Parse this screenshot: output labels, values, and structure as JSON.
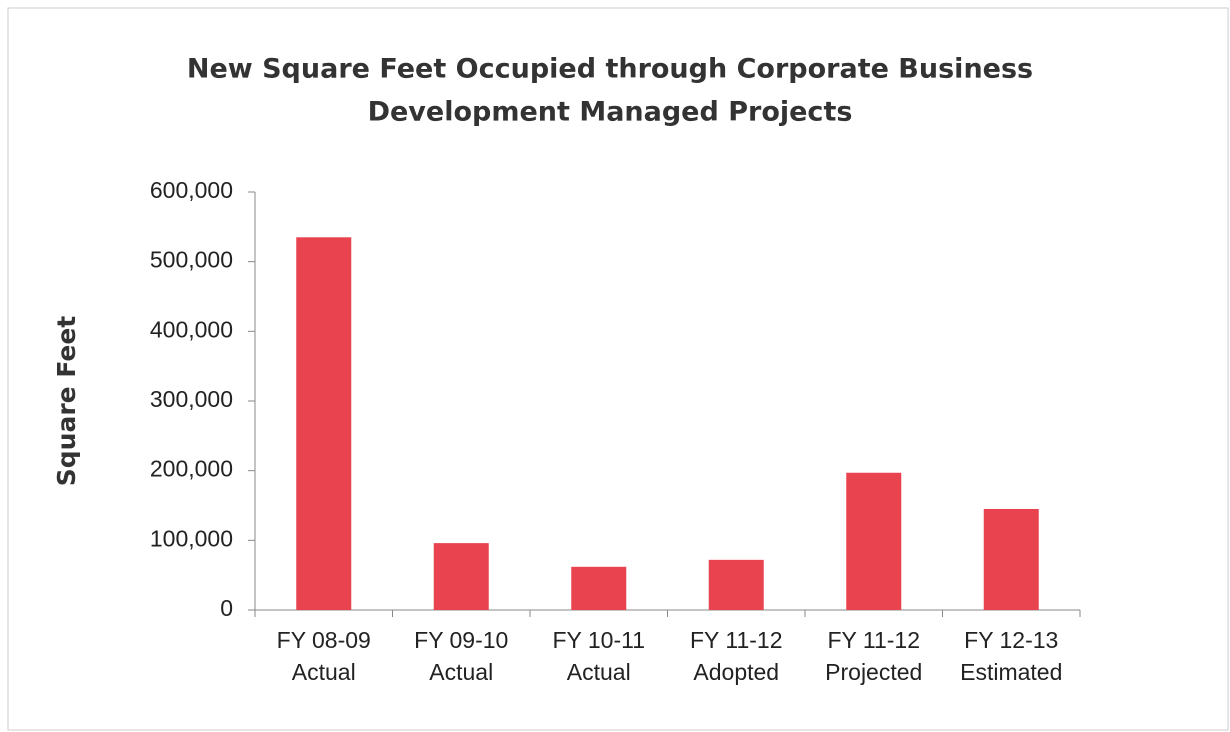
{
  "chart_data": {
    "type": "bar",
    "title": [
      "New Square Feet Occupied through Corporate Business",
      "Development Managed Projects"
    ],
    "y_label": "Square Feet",
    "categories": [
      [
        "FY 08-09",
        "Actual"
      ],
      [
        "FY 09-10",
        "Actual"
      ],
      [
        "FY 10-11",
        "Actual"
      ],
      [
        "FY 11-12",
        "Adopted"
      ],
      [
        "FY 11-12",
        "Projected"
      ],
      [
        "FY 12-13",
        "Estimated"
      ]
    ],
    "values": [
      535000,
      96000,
      62000,
      72000,
      197000,
      145000
    ],
    "color": "#e8434f",
    "ylim": [
      0,
      600000
    ],
    "yticks": [
      0,
      {
        "value": 100000,
        "label": "100,000"
      },
      {
        "value": 200000,
        "label": "200,000"
      },
      {
        "value": 300000,
        "label": "300,000"
      },
      {
        "value": 400000,
        "label": "400,000"
      },
      {
        "value": 500000,
        "label": "500,000"
      },
      {
        "value": 600000,
        "label": "600,000"
      }
    ],
    "grid": false
  }
}
